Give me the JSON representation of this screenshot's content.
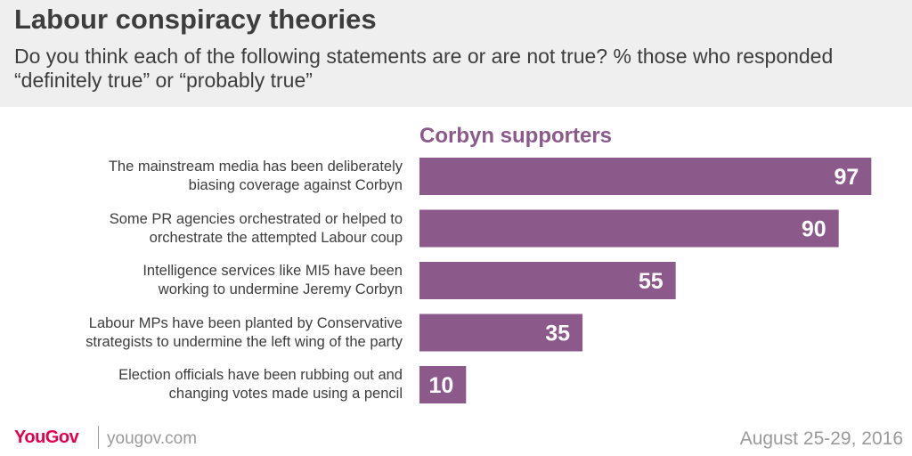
{
  "title": "Labour conspiracy theories",
  "subtitle": "Do you think each of the following statements are or are not true? % those who responded “definitely true” or “probably true”",
  "colors": {
    "bar": "#8b5a8b",
    "series_label": "#8b5a8b",
    "bar_value_text": "#ffffff",
    "logo": "#e4004c"
  },
  "chart_data": {
    "type": "bar",
    "orientation": "horizontal",
    "series": [
      {
        "name": "Corbyn supporters",
        "values": [
          97,
          90,
          55,
          35,
          10
        ]
      }
    ],
    "categories": [
      "The mainstream media has been deliberately biasing coverage against Corbyn",
      "Some PR agencies orchestrated or helped to orchestrate the attempted Labour coup",
      "Intelligence services like MI5 have been working to undermine Jeremy Corbyn",
      "Labour MPs have been planted by Conservative strategists to undermine the left wing of the party",
      "Election officials have been rubbing out and changing votes made using a pencil"
    ],
    "category_lines": [
      [
        "The mainstream media has been deliberately",
        "biasing coverage against Corbyn"
      ],
      [
        "Some PR agencies orchestrated or helped to",
        "orchestrate the attempted Labour coup"
      ],
      [
        "Intelligence services like MI5 have been",
        "working to undermine Jeremy Corbyn"
      ],
      [
        "Labour MPs have been planted by Conservative",
        "strategists to undermine the left wing of the party"
      ],
      [
        "Election officials have been rubbing out and",
        "changing votes made using a pencil"
      ]
    ],
    "xlim": [
      0,
      100
    ],
    "grid": false,
    "data_labels": true
  },
  "footer": {
    "logo": "YouGov",
    "url": "yougov.com",
    "date": "August 25-29, 2016"
  }
}
